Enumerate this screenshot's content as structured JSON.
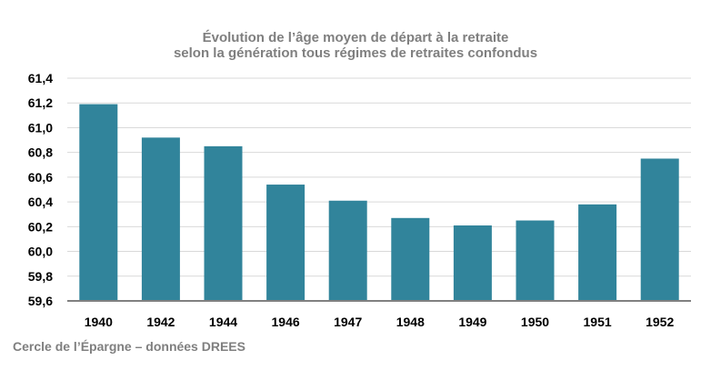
{
  "chart_data": {
    "type": "bar",
    "title_lines": [
      "Évolution de l’âge moyen de départ à la retraite",
      "selon la génération tous régimes de retraites confondus"
    ],
    "categories": [
      "1940",
      "1942",
      "1944",
      "1946",
      "1947",
      "1948",
      "1949",
      "1950",
      "1951",
      "1952"
    ],
    "values": [
      61.19,
      60.92,
      60.85,
      60.54,
      60.41,
      60.27,
      60.21,
      60.25,
      60.38,
      60.75
    ],
    "ylim": [
      59.6,
      61.4
    ],
    "yticks": [
      "59,6",
      "59,8",
      "60,0",
      "60,2",
      "60,4",
      "60,6",
      "60,8",
      "61,0",
      "61,2",
      "61,4"
    ],
    "xlabel": "",
    "ylabel": "",
    "grid": true,
    "bar_color": "#31849b",
    "grid_color": "#d9d9d9",
    "axis_color": "#808080"
  },
  "source": "Cercle de l’Épargne – données DREES"
}
